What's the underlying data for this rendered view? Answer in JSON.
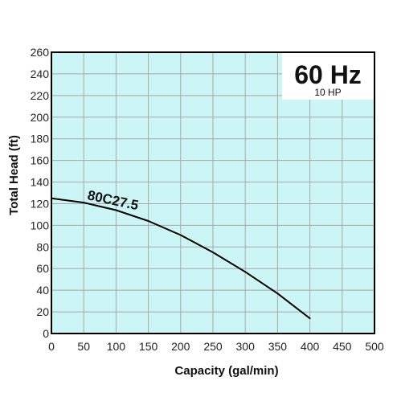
{
  "chart_data": {
    "type": "line",
    "frequency_label": "60 Hz",
    "power_label": "10 HP",
    "xlabel": "Capacity (gal/min)",
    "ylabel": "Total Head (ft)",
    "xlim": [
      0,
      500
    ],
    "ylim": [
      0,
      260
    ],
    "xticks": [
      0,
      50,
      100,
      150,
      200,
      250,
      300,
      350,
      400,
      450,
      500
    ],
    "yticks": [
      0,
      20,
      40,
      60,
      80,
      100,
      120,
      140,
      160,
      180,
      200,
      220,
      240,
      260
    ],
    "grid": true,
    "plot_background": "#ccf5f5",
    "grid_color": "#a8a8a8",
    "line_color": "#000000",
    "series": [
      {
        "name": "80C27.5",
        "x": [
          0,
          50,
          100,
          150,
          200,
          250,
          300,
          350,
          400
        ],
        "y": [
          125,
          121,
          114,
          104,
          91,
          75,
          57,
          37,
          14
        ]
      }
    ]
  }
}
